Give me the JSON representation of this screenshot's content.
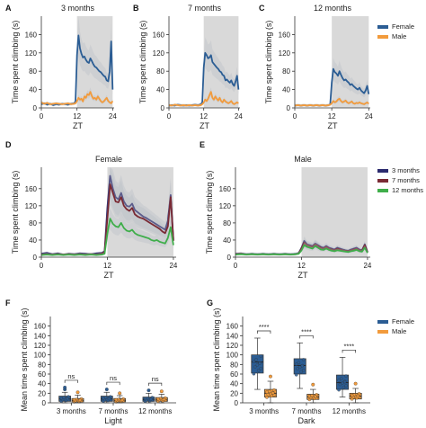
{
  "colors": {
    "female": "#2b5d94",
    "male": "#f29b3c",
    "m3": "#2b2a6e",
    "m7": "#7a2a34",
    "m12": "#3fae4a",
    "dark_shade": "#d9d9d9",
    "ci_band": "#b8bec6"
  },
  "chart_data": [
    {
      "id": "A",
      "panel_label": "A",
      "type": "line",
      "title": "3 months",
      "xlabel": "ZT",
      "ylabel": "Time spent climbing (s)",
      "xlim": [
        0,
        24.5
      ],
      "ylim": [
        0,
        200
      ],
      "xticks": [
        "0",
        "12",
        "24"
      ],
      "yticks": [
        "0",
        "40",
        "80",
        "120",
        "160"
      ],
      "dark_period": [
        12,
        24
      ],
      "x": [
        0,
        1,
        2,
        3,
        4,
        5,
        6,
        7,
        8,
        9,
        10,
        11,
        11.5,
        12,
        12.5,
        13,
        13.5,
        14,
        14.5,
        15,
        15.5,
        16,
        16.5,
        17,
        17.5,
        18,
        18.5,
        19,
        19.5,
        20,
        20.5,
        21,
        21.5,
        22,
        22.5,
        23,
        23.5,
        24
      ],
      "series": [
        {
          "name": "Female",
          "color_key": "female",
          "values": [
            8,
            10,
            7,
            9,
            6,
            8,
            7,
            9,
            8,
            7,
            9,
            10,
            14,
            115,
            158,
            130,
            118,
            110,
            112,
            105,
            100,
            98,
            108,
            102,
            95,
            90,
            88,
            84,
            80,
            78,
            74,
            70,
            68,
            60,
            58,
            80,
            145,
            40
          ]
        },
        {
          "name": "Male",
          "color_key": "male",
          "values": [
            12,
            9,
            11,
            8,
            9,
            10,
            9,
            8,
            9,
            10,
            8,
            9,
            10,
            15,
            22,
            18,
            20,
            14,
            25,
            22,
            30,
            28,
            35,
            26,
            20,
            22,
            18,
            25,
            20,
            15,
            12,
            14,
            18,
            22,
            15,
            12,
            10,
            15
          ]
        }
      ]
    },
    {
      "id": "B",
      "panel_label": "B",
      "type": "line",
      "title": "7 months",
      "xlabel": "ZT",
      "ylabel": "Time spent climbing (s)",
      "xlim": [
        0,
        24.5
      ],
      "ylim": [
        0,
        200
      ],
      "xticks": [
        "0",
        "12",
        "24"
      ],
      "yticks": [
        "0",
        "40",
        "80",
        "120",
        "160"
      ],
      "dark_period": [
        12,
        24
      ],
      "x": [
        0,
        1,
        2,
        3,
        4,
        5,
        6,
        7,
        8,
        9,
        10,
        11,
        11.5,
        12,
        12.5,
        13,
        13.5,
        14,
        14.5,
        15,
        15.5,
        16,
        16.5,
        17,
        17.5,
        18,
        18.5,
        19,
        19.5,
        20,
        20.5,
        21,
        21.5,
        22,
        22.5,
        23,
        23.5,
        24
      ],
      "series": [
        {
          "name": "Female",
          "color_key": "female",
          "values": [
            5,
            6,
            5,
            7,
            6,
            5,
            6,
            5,
            6,
            7,
            6,
            8,
            12,
            88,
            120,
            115,
            108,
            110,
            115,
            100,
            96,
            92,
            88,
            85,
            80,
            78,
            72,
            70,
            60,
            62,
            58,
            55,
            60,
            52,
            48,
            58,
            70,
            40
          ]
        },
        {
          "name": "Male",
          "color_key": "male",
          "values": [
            6,
            5,
            7,
            6,
            5,
            6,
            5,
            6,
            5,
            6,
            5,
            6,
            8,
            12,
            18,
            15,
            20,
            28,
            35,
            22,
            18,
            25,
            20,
            16,
            22,
            15,
            12,
            18,
            14,
            12,
            10,
            12,
            15,
            10,
            8,
            10,
            12,
            10
          ]
        }
      ]
    },
    {
      "id": "C",
      "panel_label": "C",
      "type": "line",
      "title": "12 months",
      "xlabel": "ZT",
      "ylabel": "Time spent climbing (s)",
      "xlim": [
        0,
        24.5
      ],
      "ylim": [
        0,
        200
      ],
      "xticks": [
        "0",
        "12",
        "24"
      ],
      "yticks": [
        "0",
        "40",
        "80",
        "120",
        "160"
      ],
      "dark_period": [
        12,
        24
      ],
      "x": [
        0,
        1,
        2,
        3,
        4,
        5,
        6,
        7,
        8,
        9,
        10,
        11,
        11.5,
        12,
        12.5,
        13,
        13.5,
        14,
        14.5,
        15,
        15.5,
        16,
        16.5,
        17,
        17.5,
        18,
        18.5,
        19,
        19.5,
        20,
        20.5,
        21,
        21.5,
        22,
        22.5,
        23,
        23.5,
        24
      ],
      "series": [
        {
          "name": "Female",
          "color_key": "female",
          "values": [
            5,
            6,
            5,
            6,
            5,
            6,
            5,
            6,
            5,
            6,
            5,
            6,
            8,
            55,
            85,
            78,
            75,
            70,
            80,
            72,
            65,
            60,
            62,
            58,
            55,
            50,
            52,
            48,
            45,
            42,
            40,
            44,
            38,
            35,
            32,
            38,
            48,
            30
          ]
        },
        {
          "name": "Male",
          "color_key": "male",
          "values": [
            5,
            6,
            5,
            6,
            5,
            6,
            5,
            6,
            5,
            6,
            5,
            6,
            7,
            10,
            15,
            12,
            14,
            18,
            20,
            15,
            12,
            14,
            16,
            12,
            10,
            12,
            14,
            10,
            9,
            11,
            10,
            12,
            10,
            9,
            8,
            10,
            12,
            9
          ]
        }
      ]
    },
    {
      "id": "D",
      "panel_label": "D",
      "type": "line",
      "title": "Female",
      "xlabel": "ZT",
      "ylabel": "Time spent climbing (s)",
      "xlim": [
        0,
        24.5
      ],
      "ylim": [
        0,
        210
      ],
      "xticks": [
        "0",
        "12",
        "24"
      ],
      "yticks": [
        "0",
        "40",
        "80",
        "120",
        "160"
      ],
      "dark_period": [
        12,
        24
      ],
      "x": [
        0,
        1,
        2,
        3,
        4,
        5,
        6,
        7,
        8,
        9,
        10,
        11,
        11.5,
        12,
        12.5,
        13,
        13.5,
        14,
        14.5,
        15,
        15.5,
        16,
        16.5,
        17,
        17.5,
        18,
        18.5,
        19,
        19.5,
        20,
        20.5,
        21,
        21.5,
        22,
        22.5,
        23,
        23.5,
        24
      ],
      "series": [
        {
          "name": "3 months",
          "color_key": "m3",
          "values": [
            8,
            10,
            7,
            9,
            6,
            8,
            7,
            9,
            8,
            7,
            9,
            10,
            14,
            115,
            190,
            160,
            140,
            135,
            150,
            130,
            120,
            118,
            125,
            110,
            105,
            100,
            95,
            92,
            88,
            84,
            80,
            76,
            72,
            68,
            64,
            85,
            145,
            40
          ]
        },
        {
          "name": "7 months",
          "color_key": "m7",
          "values": [
            6,
            7,
            6,
            7,
            6,
            7,
            6,
            7,
            6,
            7,
            6,
            8,
            12,
            90,
            170,
            150,
            130,
            128,
            140,
            120,
            112,
            108,
            115,
            100,
            95,
            92,
            90,
            86,
            82,
            78,
            74,
            70,
            66,
            60,
            56,
            72,
            140,
            38
          ]
        },
        {
          "name": "12 months",
          "color_key": "m12",
          "values": [
            5,
            6,
            5,
            6,
            5,
            6,
            5,
            6,
            5,
            6,
            5,
            6,
            8,
            55,
            90,
            78,
            72,
            70,
            80,
            68,
            62,
            60,
            64,
            56,
            52,
            50,
            48,
            46,
            44,
            40,
            38,
            40,
            36,
            34,
            32,
            45,
            70,
            28
          ]
        }
      ]
    },
    {
      "id": "E",
      "panel_label": "E",
      "type": "line",
      "title": "Male",
      "xlabel": "ZT",
      "ylabel": "Time spent climbing (s)",
      "xlim": [
        0,
        24.5
      ],
      "ylim": [
        0,
        210
      ],
      "xticks": [
        "0",
        "12",
        "24"
      ],
      "yticks": [
        "0",
        "40",
        "80",
        "120",
        "160"
      ],
      "dark_period": [
        12,
        24
      ],
      "x": [
        0,
        1,
        2,
        3,
        4,
        5,
        6,
        7,
        8,
        9,
        10,
        11,
        11.5,
        12,
        12.5,
        13,
        13.5,
        14,
        14.5,
        15,
        15.5,
        16,
        16.5,
        17,
        17.5,
        18,
        18.5,
        19,
        19.5,
        20,
        20.5,
        21,
        21.5,
        22,
        22.5,
        23,
        23.5,
        24
      ],
      "legend": [
        "3 months",
        "7 months",
        "12 months"
      ],
      "series": [
        {
          "name": "3 months",
          "color_key": "m3",
          "values": [
            8,
            9,
            7,
            8,
            7,
            8,
            7,
            8,
            7,
            8,
            7,
            8,
            10,
            22,
            38,
            30,
            28,
            26,
            32,
            28,
            24,
            22,
            26,
            22,
            20,
            18,
            22,
            20,
            18,
            16,
            15,
            18,
            20,
            22,
            18,
            16,
            30,
            12
          ]
        },
        {
          "name": "7 months",
          "color_key": "m7",
          "values": [
            7,
            8,
            6,
            7,
            6,
            7,
            6,
            7,
            6,
            7,
            6,
            7,
            9,
            20,
            34,
            28,
            26,
            24,
            30,
            26,
            22,
            20,
            24,
            20,
            18,
            16,
            20,
            18,
            16,
            15,
            14,
            16,
            18,
            20,
            16,
            15,
            28,
            11
          ]
        },
        {
          "name": "12 months",
          "color_key": "m12",
          "values": [
            6,
            7,
            6,
            7,
            6,
            7,
            6,
            7,
            6,
            7,
            6,
            7,
            8,
            16,
            28,
            24,
            22,
            20,
            26,
            22,
            18,
            17,
            20,
            17,
            15,
            14,
            16,
            15,
            14,
            13,
            12,
            14,
            15,
            17,
            14,
            13,
            22,
            10
          ]
        }
      ]
    },
    {
      "id": "F",
      "panel_label": "F",
      "type": "box",
      "period": "Light",
      "xlabel": "Light",
      "ylabel": "Mean time spent climbing (s)",
      "ylim": [
        0,
        180
      ],
      "yticks": [
        "0",
        "20",
        "40",
        "60",
        "80",
        "100",
        "120",
        "140",
        "160"
      ],
      "categories": [
        "3 months",
        "7 months",
        "12 months"
      ],
      "series": [
        {
          "name": "Female",
          "color_key": "female",
          "stats": [
            {
              "min": 0,
              "q1": 3,
              "median": 8,
              "q3": 14,
              "max": 22,
              "outliers": [
                28,
                32
              ]
            },
            {
              "min": 0,
              "q1": 3,
              "median": 8,
              "q3": 14,
              "max": 22,
              "outliers": [
                28
              ]
            },
            {
              "min": 0,
              "q1": 3,
              "median": 7,
              "q3": 12,
              "max": 20,
              "outliers": [
                26
              ]
            }
          ]
        },
        {
          "name": "Male",
          "color_key": "male",
          "stats": [
            {
              "min": 0,
              "q1": 2,
              "median": 5,
              "q3": 9,
              "max": 16,
              "outliers": [
                22
              ]
            },
            {
              "min": 0,
              "q1": 2,
              "median": 5,
              "q3": 9,
              "max": 15,
              "outliers": [
                20
              ]
            },
            {
              "min": 0,
              "q1": 3,
              "median": 6,
              "q3": 11,
              "max": 18,
              "outliers": [
                24
              ]
            }
          ]
        }
      ],
      "significance": [
        "ns",
        "ns",
        "ns"
      ]
    },
    {
      "id": "G",
      "panel_label": "G",
      "type": "box",
      "period": "Dark",
      "xlabel": "Dark",
      "ylabel": "Mean time spent climbing (s)",
      "ylim": [
        0,
        180
      ],
      "yticks": [
        "0",
        "20",
        "40",
        "60",
        "80",
        "100",
        "120",
        "140",
        "160"
      ],
      "categories": [
        "3 months",
        "7 months",
        "12 months"
      ],
      "legend": [
        "Female",
        "Male"
      ],
      "series": [
        {
          "name": "Female",
          "color_key": "female",
          "stats": [
            {
              "min": 28,
              "q1": 62,
              "median": 85,
              "q3": 100,
              "max": 135,
              "outliers": []
            },
            {
              "min": 30,
              "q1": 60,
              "median": 78,
              "q3": 92,
              "max": 125,
              "outliers": []
            },
            {
              "min": 12,
              "q1": 28,
              "median": 42,
              "q3": 58,
              "max": 95,
              "outliers": []
            }
          ]
        },
        {
          "name": "Male",
          "color_key": "male",
          "stats": [
            {
              "min": 0,
              "q1": 12,
              "median": 20,
              "q3": 28,
              "max": 45,
              "outliers": [
                55
              ]
            },
            {
              "min": 0,
              "q1": 7,
              "median": 12,
              "q3": 18,
              "max": 28,
              "outliers": [
                38
              ]
            },
            {
              "min": 0,
              "q1": 8,
              "median": 14,
              "q3": 20,
              "max": 30,
              "outliers": [
                40
              ]
            }
          ]
        }
      ],
      "significance": [
        "****",
        "****",
        "****"
      ]
    }
  ]
}
